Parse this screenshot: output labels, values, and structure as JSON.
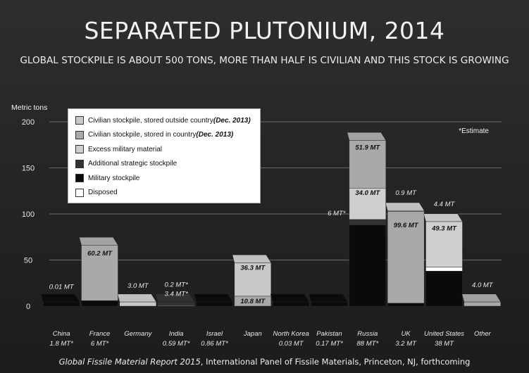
{
  "title": "SEPARATED PLUTONIUM, 2014",
  "subtitle": "GLOBAL STOCKPILE IS ABOUT 500 TONS, MORE THAN HALF IS CIVILIAN AND THIS STOCK IS GROWING",
  "source_italic": "Global Fissile Material Report 2015",
  "source_rest": ", International Panel of Fissile Materials, Princeton, NJ, forthcoming",
  "estimate_note": "*Estimate",
  "colors": {
    "civilian_outside": "#c9c9c9",
    "civilian_in": "#a9a9a9",
    "excess_military": "#cfcfcf",
    "additional_strategic": "#333333",
    "military": "#0a0a0a",
    "disposed": "#ffffff"
  },
  "legend": [
    {
      "key": "civilian_outside",
      "label": "Civilian stockpile, stored outside country ",
      "note": "(Dec. 2013)"
    },
    {
      "key": "civilian_in",
      "label": "Civilian stockpile, stored in country ",
      "note": "(Dec. 2013)"
    },
    {
      "key": "excess_military",
      "label": "Excess military material",
      "note": ""
    },
    {
      "key": "additional_strategic",
      "label": "Additional strategic stockpile",
      "note": ""
    },
    {
      "key": "military",
      "label": "Military stockpile",
      "note": ""
    },
    {
      "key": "disposed",
      "label": "Disposed",
      "note": ""
    }
  ],
  "chart_data": {
    "type": "bar",
    "stacked": true,
    "ylabel": "Metric tons",
    "ylim": [
      0,
      200
    ],
    "yticks": [
      0,
      50,
      100,
      150,
      200
    ],
    "grid": true,
    "categories": [
      "China",
      "France",
      "Germany",
      "India",
      "Israel",
      "Japan",
      "North Korea",
      "Pakistan",
      "Russia",
      "UK",
      "United States",
      "Other"
    ],
    "totals": [
      "1.8 MT*",
      "6 MT*",
      "",
      "0.59 MT*",
      "0.86 MT*",
      "",
      "0.03 MT",
      "0.17 MT*",
      "88 MT*",
      "3.2 MT",
      "38 MT",
      ""
    ],
    "bars": [
      {
        "category": "China",
        "segments": [
          {
            "key": "military",
            "value": 1.8
          }
        ]
      },
      {
        "category": "France",
        "segments": [
          {
            "key": "military",
            "value": 6
          },
          {
            "key": "civilian_in",
            "value": 60.2
          }
        ]
      },
      {
        "category": "Germany",
        "segments": [
          {
            "key": "civilian_outside",
            "value": 3.0
          }
        ]
      },
      {
        "category": "India",
        "segments": [
          {
            "key": "military",
            "value": 0.59
          },
          {
            "key": "civilian_in",
            "value": 0.2
          },
          {
            "key": "additional_strategic",
            "value": 3.4
          }
        ]
      },
      {
        "category": "Israel",
        "segments": [
          {
            "key": "military",
            "value": 0.86
          }
        ]
      },
      {
        "category": "Japan",
        "segments": [
          {
            "key": "civilian_in",
            "value": 10.8
          },
          {
            "key": "civilian_outside",
            "value": 36.3
          }
        ]
      },
      {
        "category": "North Korea",
        "segments": [
          {
            "key": "military",
            "value": 0.03
          }
        ]
      },
      {
        "category": "Pakistan",
        "segments": [
          {
            "key": "military",
            "value": 0.17
          }
        ]
      },
      {
        "category": "Russia",
        "segments": [
          {
            "key": "military",
            "value": 88
          },
          {
            "key": "additional_strategic",
            "value": 6
          },
          {
            "key": "excess_military",
            "value": 34.0
          },
          {
            "key": "civilian_in",
            "value": 51.9
          }
        ]
      },
      {
        "category": "UK",
        "segments": [
          {
            "key": "military",
            "value": 3.2
          },
          {
            "key": "civilian_in",
            "value": 99.6
          },
          {
            "key": "civilian_outside",
            "value": 0.9
          }
        ]
      },
      {
        "category": "United States",
        "segments": [
          {
            "key": "military",
            "value": 38
          },
          {
            "key": "disposed",
            "value": 4.4
          },
          {
            "key": "excess_military",
            "value": 49.3
          }
        ]
      },
      {
        "category": "Other",
        "segments": [
          {
            "key": "civilian_in",
            "value": 4.0
          }
        ]
      }
    ],
    "data_labels": [
      {
        "category": "China",
        "segment": "top",
        "text": "0.01 MT"
      },
      {
        "category": "France",
        "segment": "civilian_in",
        "text": "60.2 MT"
      },
      {
        "category": "Germany",
        "segment": "top",
        "text": "3.0 MT"
      },
      {
        "category": "India",
        "segment": "top",
        "text": "0.2 MT*"
      },
      {
        "category": "India",
        "segment": "top2",
        "text": "3.4 MT*"
      },
      {
        "category": "Japan",
        "segment": "civilian_outside",
        "text": "36.3 MT"
      },
      {
        "category": "Japan",
        "segment": "civilian_in",
        "text": "10.8 MT"
      },
      {
        "category": "Russia",
        "segment": "civilian_in",
        "text": "51.9 MT"
      },
      {
        "category": "Russia",
        "segment": "excess_military",
        "text": "34.0 MT"
      },
      {
        "category": "Russia",
        "segment": "left",
        "text": "6 MT*"
      },
      {
        "category": "UK",
        "segment": "top",
        "text": "0.9 MT"
      },
      {
        "category": "UK",
        "segment": "civilian_in",
        "text": "99.6 MT"
      },
      {
        "category": "United States",
        "segment": "top",
        "text": "4.4 MT"
      },
      {
        "category": "United States",
        "segment": "excess_military",
        "text": "49.3 MT"
      },
      {
        "category": "Other",
        "segment": "top",
        "text": "4.0 MT"
      }
    ]
  }
}
